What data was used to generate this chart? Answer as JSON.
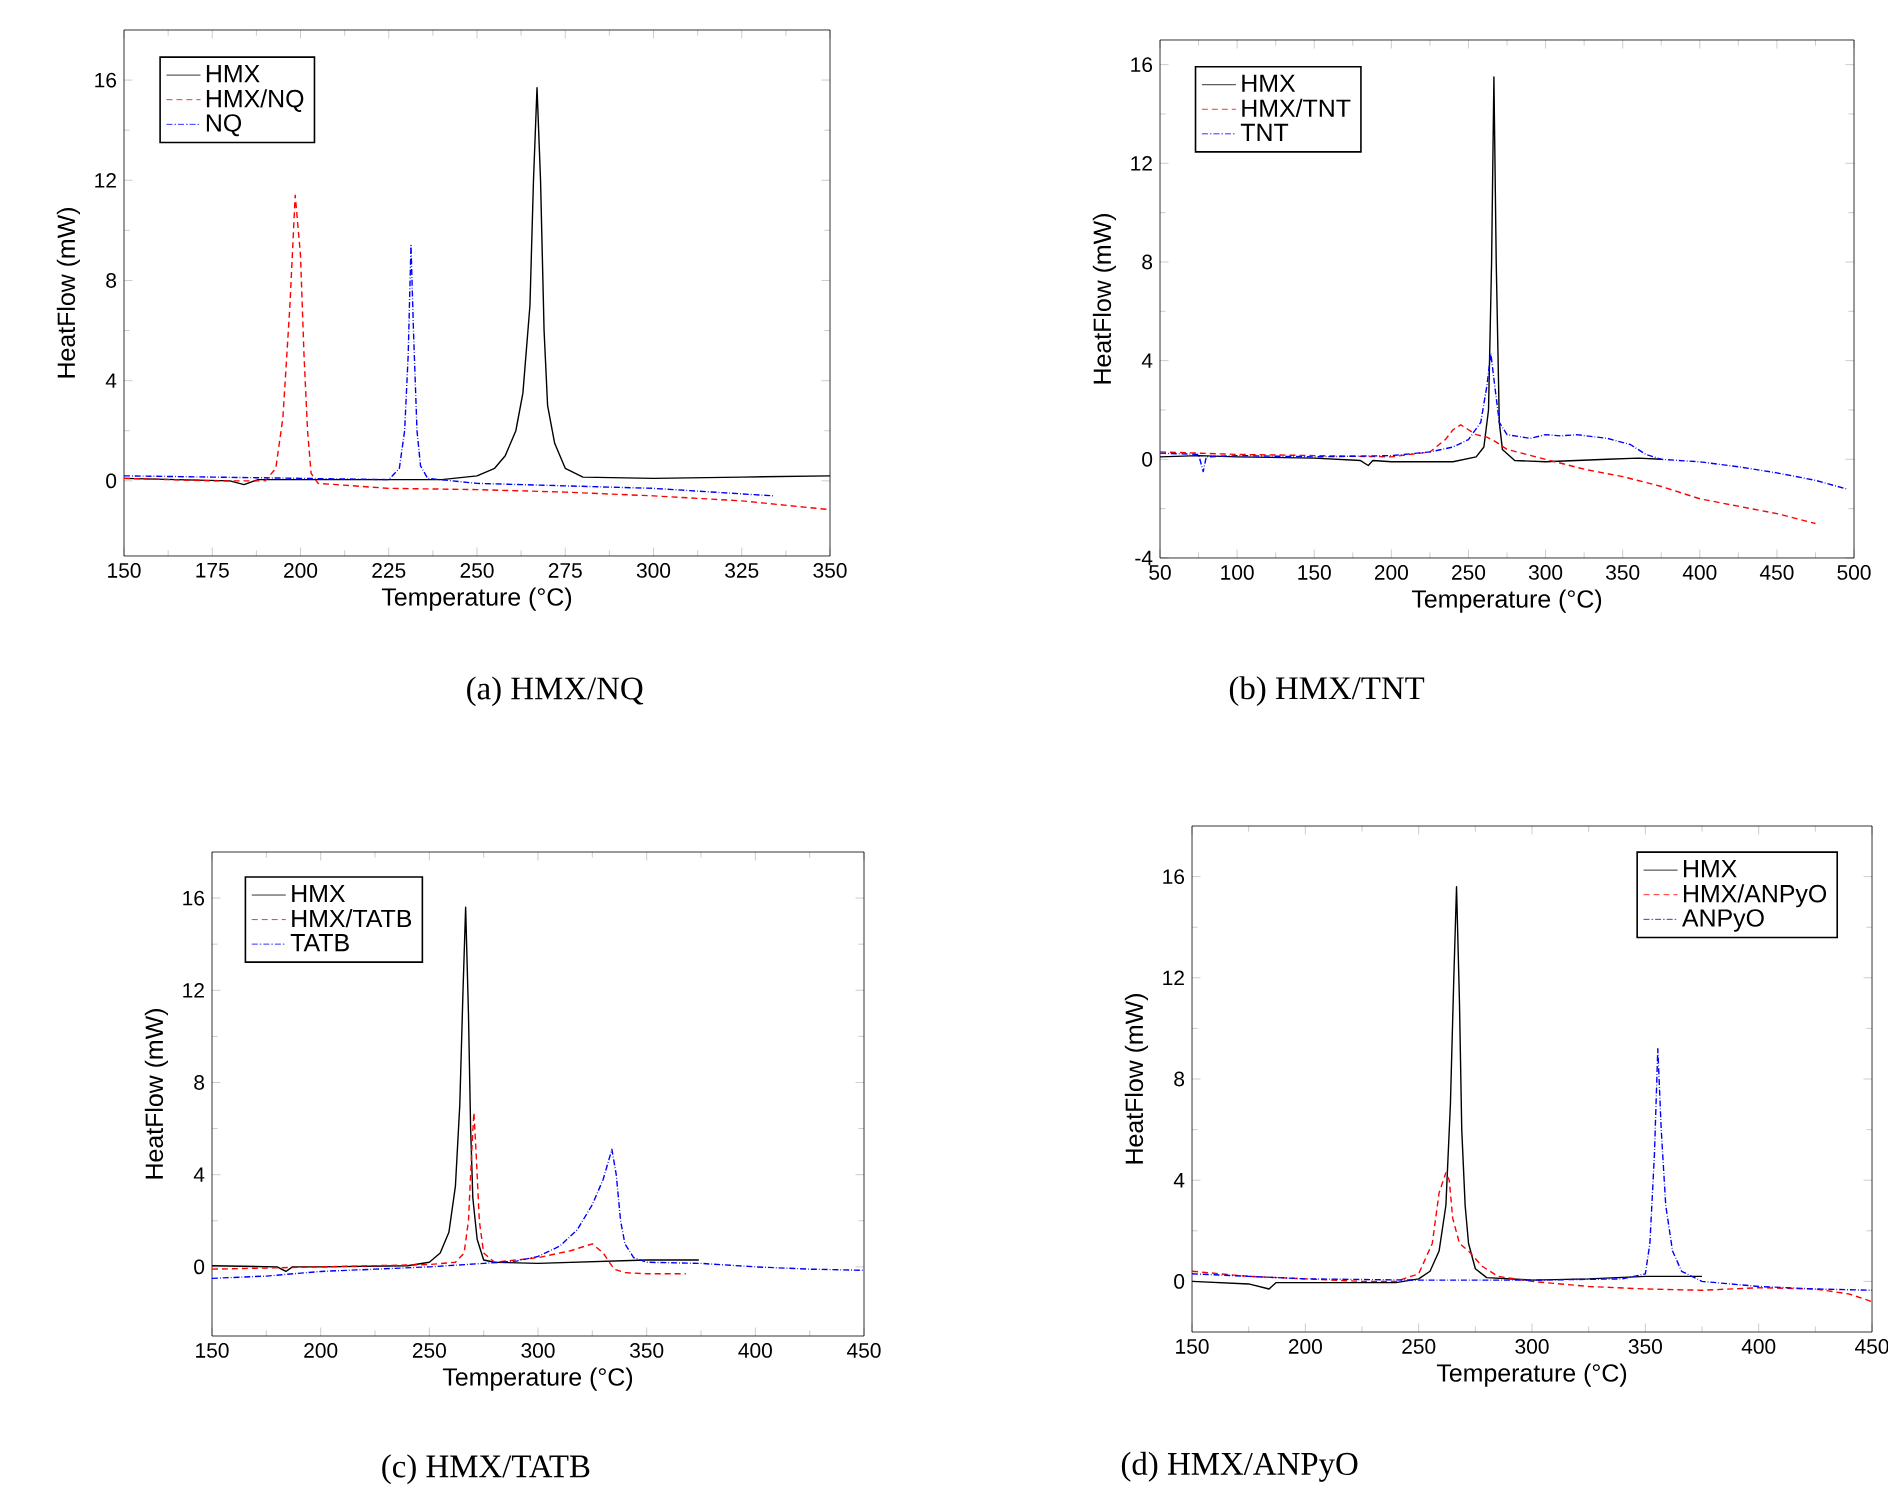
{
  "chart_data": [
    {
      "type": "line",
      "title": "(a)  HMX/NQ",
      "xlabel": "Temperature (°C)",
      "ylabel": "HeatFlow (mW)",
      "xlim": [
        150,
        350
      ],
      "ylim": [
        -3,
        18
      ],
      "xticks": [
        150,
        175,
        200,
        225,
        250,
        275,
        300,
        325,
        350
      ],
      "yticks": [
        0,
        4,
        8,
        12,
        16
      ],
      "legend": "top left",
      "series": [
        {
          "name": "HMX",
          "color": "#000000",
          "line_style": "solid",
          "x": [
            150,
            180,
            184,
            188,
            200,
            240,
            250,
            255,
            258,
            261,
            263,
            265,
            266,
            267,
            268,
            269,
            270,
            272,
            275,
            280,
            300,
            325,
            350
          ],
          "values": [
            0.1,
            0.0,
            -0.15,
            0.05,
            0.05,
            0.05,
            0.2,
            0.5,
            1.0,
            2.0,
            3.5,
            7,
            12,
            15.7,
            12,
            6,
            3,
            1.5,
            0.5,
            0.15,
            0.1,
            0.15,
            0.2
          ]
        },
        {
          "name": "HMX/NQ",
          "color": "#ff0000",
          "line_style": "dashed",
          "x": [
            150,
            175,
            190,
            193,
            195,
            197,
            198.5,
            200,
            201,
            202,
            203,
            205,
            225,
            250,
            275,
            300,
            325,
            350
          ],
          "values": [
            0.1,
            0.0,
            0.0,
            0.5,
            2.5,
            7,
            11.4,
            9,
            5,
            2,
            0.3,
            -0.1,
            -0.3,
            -0.35,
            -0.45,
            -0.6,
            -0.8,
            -1.15
          ]
        },
        {
          "name": "NQ",
          "color": "#0000ff",
          "line_style": "dashdot",
          "x": [
            150,
            175,
            200,
            225,
            228,
            229.5,
            230.5,
            231.3,
            232,
            233,
            234,
            236,
            250,
            275,
            300,
            334
          ],
          "values": [
            0.2,
            0.15,
            0.1,
            0.05,
            0.5,
            2,
            5,
            9.4,
            6,
            2,
            0.6,
            0.1,
            -0.1,
            -0.2,
            -0.3,
            -0.6
          ]
        }
      ]
    },
    {
      "type": "line",
      "title": "(b)  HMX/TNT",
      "xlabel": "Temperature (°C)",
      "ylabel": "HeatFlow (mW)",
      "xlim": [
        50,
        500
      ],
      "ylim": [
        -4,
        17
      ],
      "xticks": [
        50,
        100,
        150,
        200,
        250,
        300,
        350,
        400,
        450,
        500
      ],
      "yticks": [
        -4,
        0,
        4,
        8,
        12,
        16
      ],
      "legend": "top left",
      "series": [
        {
          "name": "HMX",
          "color": "#000000",
          "line_style": "solid",
          "x": [
            50,
            75,
            100,
            150,
            180,
            185,
            188,
            200,
            240,
            255,
            260,
            263,
            265,
            266.5,
            268,
            270,
            272,
            280,
            300,
            340,
            360,
            375
          ],
          "values": [
            0.1,
            0.15,
            0.1,
            0.05,
            -0.05,
            -0.25,
            -0.05,
            -0.1,
            -0.1,
            0.1,
            0.5,
            2,
            8,
            15.5,
            8,
            1.5,
            0.4,
            -0.05,
            -0.1,
            0.0,
            0.05,
            0.0
          ]
        },
        {
          "name": "HMX/TNT",
          "color": "#ff0000",
          "line_style": "dashed",
          "x": [
            50,
            100,
            150,
            200,
            225,
            235,
            240,
            245,
            250,
            255,
            262,
            268,
            275,
            300,
            325,
            350,
            375,
            400,
            425,
            450,
            475
          ],
          "values": [
            0.3,
            0.2,
            0.15,
            0.1,
            0.3,
            0.8,
            1.2,
            1.4,
            1.2,
            1.0,
            0.9,
            0.7,
            0.4,
            0.0,
            -0.4,
            -0.7,
            -1.1,
            -1.6,
            -1.9,
            -2.2,
            -2.6
          ]
        },
        {
          "name": "TNT",
          "color": "#0000ff",
          "line_style": "dashdot",
          "x": [
            50,
            75,
            78,
            80,
            100,
            150,
            200,
            225,
            240,
            250,
            258,
            262,
            264.5,
            267,
            270,
            275,
            290,
            300,
            310,
            320,
            340,
            355,
            365,
            375,
            400,
            425,
            450,
            475,
            495
          ],
          "values": [
            0.25,
            0.2,
            -0.5,
            0.1,
            0.15,
            0.1,
            0.15,
            0.3,
            0.5,
            0.8,
            1.5,
            3,
            4.3,
            3,
            1.5,
            1.0,
            0.85,
            1.0,
            0.95,
            1.0,
            0.85,
            0.6,
            0.2,
            0.0,
            -0.1,
            -0.3,
            -0.55,
            -0.85,
            -1.2
          ]
        }
      ]
    },
    {
      "type": "line",
      "title": "(c)  HMX/TATB",
      "xlabel": "Temperature (°C)",
      "ylabel": "HeatFlow (mW)",
      "xlim": [
        150,
        450
      ],
      "ylim": [
        -3,
        18
      ],
      "xticks": [
        150,
        200,
        250,
        300,
        350,
        400,
        450
      ],
      "yticks": [
        0,
        4,
        8,
        12,
        16
      ],
      "legend": "top left",
      "series": [
        {
          "name": "HMX",
          "color": "#000000",
          "line_style": "solid",
          "x": [
            150,
            180,
            184,
            187,
            200,
            240,
            250,
            255,
            259,
            262,
            264,
            265.5,
            266.7,
            268,
            269,
            270,
            272,
            275,
            280,
            300,
            350,
            374
          ],
          "values": [
            0.05,
            0.0,
            -0.2,
            0.0,
            0.0,
            0.05,
            0.2,
            0.6,
            1.5,
            3.5,
            7,
            12,
            15.6,
            11,
            6,
            3,
            1.2,
            0.3,
            0.2,
            0.15,
            0.3,
            0.3
          ]
        },
        {
          "name": "HMX/TATB",
          "color": "#ff0000",
          "line_style": "dashed",
          "x": [
            150,
            175,
            200,
            225,
            250,
            262,
            266,
            268,
            269.5,
            270.5,
            271.5,
            273,
            275,
            280,
            300,
            315,
            325,
            330,
            335,
            340,
            350,
            368
          ],
          "values": [
            -0.1,
            -0.05,
            0.0,
            0.05,
            0.1,
            0.2,
            0.6,
            2,
            5,
            6.7,
            5,
            2,
            0.6,
            0.2,
            0.4,
            0.7,
            1.0,
            0.6,
            -0.1,
            -0.25,
            -0.3,
            -0.3
          ]
        },
        {
          "name": "TATB",
          "color": "#0000ff",
          "line_style": "dashdot",
          "x": [
            150,
            175,
            200,
            225,
            250,
            275,
            290,
            300,
            310,
            318,
            325,
            330,
            334,
            336,
            338,
            340,
            344,
            350,
            375,
            400,
            425,
            450
          ],
          "values": [
            -0.5,
            -0.4,
            -0.2,
            -0.1,
            0.0,
            0.15,
            0.25,
            0.45,
            0.9,
            1.6,
            2.7,
            3.8,
            5.1,
            4.0,
            2.0,
            1.0,
            0.4,
            0.2,
            0.15,
            0.0,
            -0.1,
            -0.15
          ]
        }
      ]
    },
    {
      "type": "line",
      "title": "(d) HMX/ANPyO",
      "xlabel": "Temperature (°C)",
      "ylabel": "HeatFlow (mW)",
      "xlim": [
        150,
        450
      ],
      "ylim": [
        -2,
        18
      ],
      "xticks": [
        150,
        200,
        250,
        300,
        350,
        400,
        450
      ],
      "yticks": [
        0,
        4,
        8,
        12,
        16
      ],
      "legend": "top right",
      "series": [
        {
          "name": "HMX",
          "color": "#000000",
          "line_style": "solid",
          "x": [
            150,
            175,
            184,
            187,
            200,
            240,
            250,
            255,
            259,
            262,
            264,
            265.5,
            266.7,
            268,
            269,
            270.5,
            272,
            275,
            280,
            300,
            325,
            350,
            375
          ],
          "values": [
            0.0,
            -0.1,
            -0.3,
            -0.05,
            -0.05,
            -0.05,
            0.1,
            0.4,
            1.2,
            3,
            7,
            12,
            15.6,
            11,
            6,
            3,
            1.5,
            0.5,
            0.15,
            0.05,
            0.1,
            0.2,
            0.2
          ]
        },
        {
          "name": "HMX/ANPyO",
          "color": "#ff0000",
          "line_style": "dashed",
          "x": [
            150,
            175,
            200,
            225,
            240,
            250,
            256,
            259,
            262,
            263.5,
            265,
            268,
            272,
            278,
            285,
            300,
            325,
            350,
            375,
            400,
            425,
            440,
            450
          ],
          "values": [
            0.4,
            0.2,
            0.1,
            0.0,
            0.0,
            0.3,
            1.5,
            3.5,
            4.3,
            4.0,
            2.5,
            1.5,
            1.2,
            0.6,
            0.2,
            0.0,
            -0.2,
            -0.3,
            -0.35,
            -0.25,
            -0.3,
            -0.5,
            -0.8
          ]
        },
        {
          "name": "ANPyO",
          "color": "#0000ff",
          "line_style": "dashdot",
          "x": [
            150,
            175,
            200,
            250,
            300,
            340,
            350,
            352,
            354,
            355.5,
            357,
            359,
            362,
            366,
            375,
            400,
            425,
            450
          ],
          "values": [
            0.3,
            0.2,
            0.1,
            0.05,
            0.05,
            0.1,
            0.3,
            1.5,
            5,
            9.2,
            6,
            3,
            1.2,
            0.4,
            0.0,
            -0.2,
            -0.3,
            -0.35
          ]
        }
      ]
    }
  ]
}
